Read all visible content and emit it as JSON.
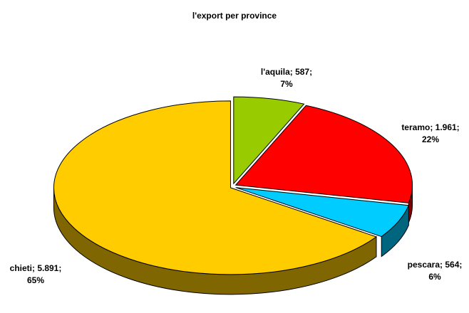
{
  "chart_data": {
    "type": "pie",
    "title": "l'export per province",
    "slices": [
      {
        "name": "l'aquila",
        "value": 587,
        "value_label": "587",
        "percent_label": "7%",
        "color": "#99CC00",
        "side_color": "#4d6600"
      },
      {
        "name": "teramo",
        "value": 1961,
        "value_label": "1.961",
        "percent_label": "22%",
        "color": "#FF0000",
        "side_color": "#800000"
      },
      {
        "name": "pescara",
        "value": 564,
        "value_label": "564",
        "percent_label": "6%",
        "color": "#00CCFF",
        "side_color": "#006680"
      },
      {
        "name": "chieti",
        "value": 5891,
        "value_label": "5.891",
        "percent_label": "65%",
        "color": "#FFCC00",
        "side_color": "#806600"
      }
    ]
  }
}
